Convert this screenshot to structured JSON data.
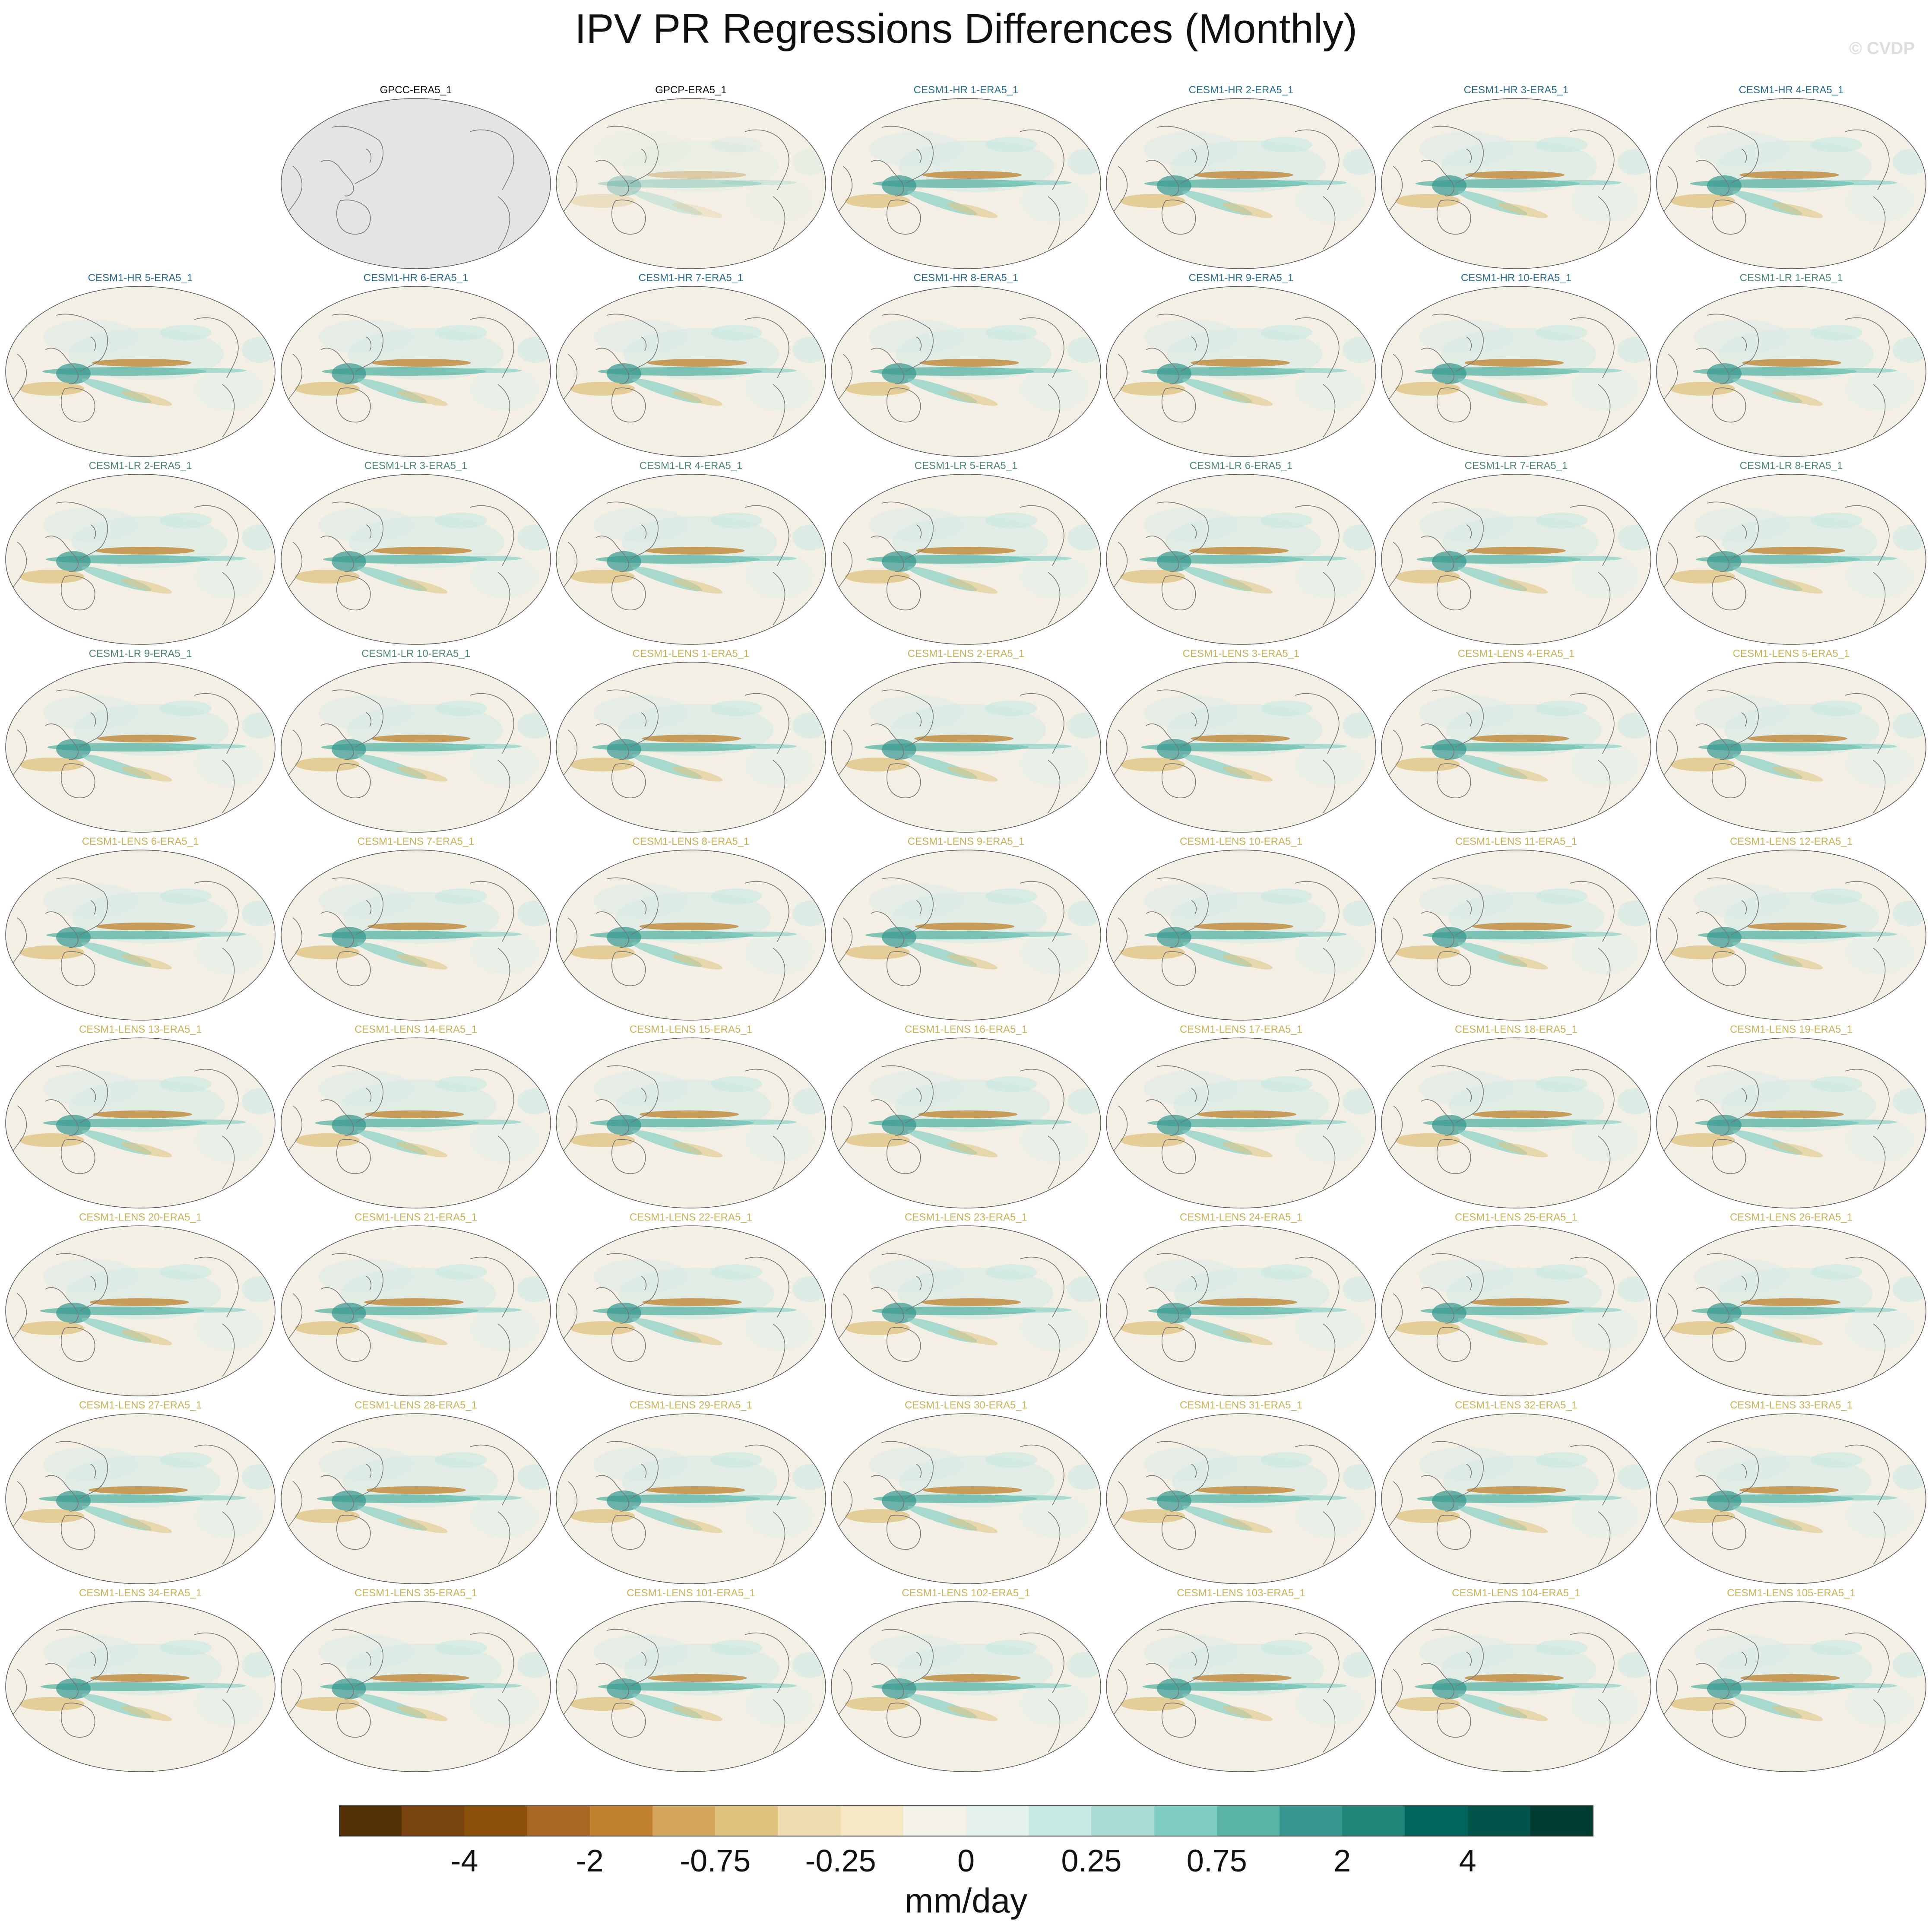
{
  "title": "IPV PR Regressions Differences (Monthly)",
  "watermark": "© CVDP",
  "colors": {
    "obs_label": "#111111",
    "hr_label": "#2b6e8f",
    "lr_label": "#4f8a6e",
    "lens_label": "#c9b25c",
    "ocean_fill": "#f3efe4",
    "missing_fill": "#e4e4e4",
    "coast": "#777777"
  },
  "panels": [
    {
      "label": "GPCC-ERA5_1",
      "group": "obs",
      "missing": true
    },
    {
      "label": "GPCP-ERA5_1",
      "group": "obs"
    },
    {
      "label": "CESM1-HR 1-ERA5_1",
      "group": "hr"
    },
    {
      "label": "CESM1-HR 2-ERA5_1",
      "group": "hr"
    },
    {
      "label": "CESM1-HR 3-ERA5_1",
      "group": "hr"
    },
    {
      "label": "CESM1-HR 4-ERA5_1",
      "group": "hr"
    },
    {
      "label": "CESM1-HR 5-ERA5_1",
      "group": "hr"
    },
    {
      "label": "CESM1-HR 6-ERA5_1",
      "group": "hr"
    },
    {
      "label": "CESM1-HR 7-ERA5_1",
      "group": "hr"
    },
    {
      "label": "CESM1-HR 8-ERA5_1",
      "group": "hr"
    },
    {
      "label": "CESM1-HR 9-ERA5_1",
      "group": "hr"
    },
    {
      "label": "CESM1-HR 10-ERA5_1",
      "group": "hr"
    },
    {
      "label": "CESM1-LR 1-ERA5_1",
      "group": "lr"
    },
    {
      "label": "CESM1-LR 2-ERA5_1",
      "group": "lr"
    },
    {
      "label": "CESM1-LR 3-ERA5_1",
      "group": "lr"
    },
    {
      "label": "CESM1-LR 4-ERA5_1",
      "group": "lr"
    },
    {
      "label": "CESM1-LR 5-ERA5_1",
      "group": "lr"
    },
    {
      "label": "CESM1-LR 6-ERA5_1",
      "group": "lr"
    },
    {
      "label": "CESM1-LR 7-ERA5_1",
      "group": "lr"
    },
    {
      "label": "CESM1-LR 8-ERA5_1",
      "group": "lr"
    },
    {
      "label": "CESM1-LR 9-ERA5_1",
      "group": "lr"
    },
    {
      "label": "CESM1-LR 10-ERA5_1",
      "group": "lr"
    },
    {
      "label": "CESM1-LENS 1-ERA5_1",
      "group": "lens"
    },
    {
      "label": "CESM1-LENS 2-ERA5_1",
      "group": "lens"
    },
    {
      "label": "CESM1-LENS 3-ERA5_1",
      "group": "lens"
    },
    {
      "label": "CESM1-LENS 4-ERA5_1",
      "group": "lens"
    },
    {
      "label": "CESM1-LENS 5-ERA5_1",
      "group": "lens"
    },
    {
      "label": "CESM1-LENS 6-ERA5_1",
      "group": "lens"
    },
    {
      "label": "CESM1-LENS 7-ERA5_1",
      "group": "lens"
    },
    {
      "label": "CESM1-LENS 8-ERA5_1",
      "group": "lens"
    },
    {
      "label": "CESM1-LENS 9-ERA5_1",
      "group": "lens"
    },
    {
      "label": "CESM1-LENS 10-ERA5_1",
      "group": "lens"
    },
    {
      "label": "CESM1-LENS 11-ERA5_1",
      "group": "lens"
    },
    {
      "label": "CESM1-LENS 12-ERA5_1",
      "group": "lens"
    },
    {
      "label": "CESM1-LENS 13-ERA5_1",
      "group": "lens"
    },
    {
      "label": "CESM1-LENS 14-ERA5_1",
      "group": "lens"
    },
    {
      "label": "CESM1-LENS 15-ERA5_1",
      "group": "lens"
    },
    {
      "label": "CESM1-LENS 16-ERA5_1",
      "group": "lens"
    },
    {
      "label": "CESM1-LENS 17-ERA5_1",
      "group": "lens"
    },
    {
      "label": "CESM1-LENS 18-ERA5_1",
      "group": "lens"
    },
    {
      "label": "CESM1-LENS 19-ERA5_1",
      "group": "lens"
    },
    {
      "label": "CESM1-LENS 20-ERA5_1",
      "group": "lens"
    },
    {
      "label": "CESM1-LENS 21-ERA5_1",
      "group": "lens"
    },
    {
      "label": "CESM1-LENS 22-ERA5_1",
      "group": "lens"
    },
    {
      "label": "CESM1-LENS 23-ERA5_1",
      "group": "lens"
    },
    {
      "label": "CESM1-LENS 24-ERA5_1",
      "group": "lens"
    },
    {
      "label": "CESM1-LENS 25-ERA5_1",
      "group": "lens"
    },
    {
      "label": "CESM1-LENS 26-ERA5_1",
      "group": "lens"
    },
    {
      "label": "CESM1-LENS 27-ERA5_1",
      "group": "lens"
    },
    {
      "label": "CESM1-LENS 28-ERA5_1",
      "group": "lens"
    },
    {
      "label": "CESM1-LENS 29-ERA5_1",
      "group": "lens"
    },
    {
      "label": "CESM1-LENS 30-ERA5_1",
      "group": "lens"
    },
    {
      "label": "CESM1-LENS 31-ERA5_1",
      "group": "lens"
    },
    {
      "label": "CESM1-LENS 32-ERA5_1",
      "group": "lens"
    },
    {
      "label": "CESM1-LENS 33-ERA5_1",
      "group": "lens"
    },
    {
      "label": "CESM1-LENS 34-ERA5_1",
      "group": "lens"
    },
    {
      "label": "CESM1-LENS 35-ERA5_1",
      "group": "lens"
    },
    {
      "label": "CESM1-LENS 101-ERA5_1",
      "group": "lens"
    },
    {
      "label": "CESM1-LENS 102-ERA5_1",
      "group": "lens"
    },
    {
      "label": "CESM1-LENS 103-ERA5_1",
      "group": "lens"
    },
    {
      "label": "CESM1-LENS 104-ERA5_1",
      "group": "lens"
    },
    {
      "label": "CESM1-LENS 105-ERA5_1",
      "group": "lens"
    }
  ],
  "colorbar": {
    "units": "mm/day",
    "colors": [
      "#543005",
      "#7a4410",
      "#8c510a",
      "#a86722",
      "#bf812d",
      "#d2a55b",
      "#dfc27d",
      "#eedcae",
      "#f6e8c3",
      "#f5f2ea",
      "#e4f1ee",
      "#c7eae5",
      "#a8ddd5",
      "#80cdc1",
      "#5ab4a6",
      "#35978f",
      "#1e8577",
      "#01665e",
      "#00544a",
      "#003c30"
    ],
    "ticks": [
      {
        "label": "-4",
        "boundary": 2
      },
      {
        "label": "-2",
        "boundary": 4
      },
      {
        "label": "-0.75",
        "boundary": 6
      },
      {
        "label": "-0.25",
        "boundary": 8
      },
      {
        "label": "0",
        "boundary": 10
      },
      {
        "label": "0.25",
        "boundary": 12
      },
      {
        "label": "0.75",
        "boundary": 14
      },
      {
        "label": "2",
        "boundary": 16
      },
      {
        "label": "4",
        "boundary": 18
      }
    ]
  }
}
